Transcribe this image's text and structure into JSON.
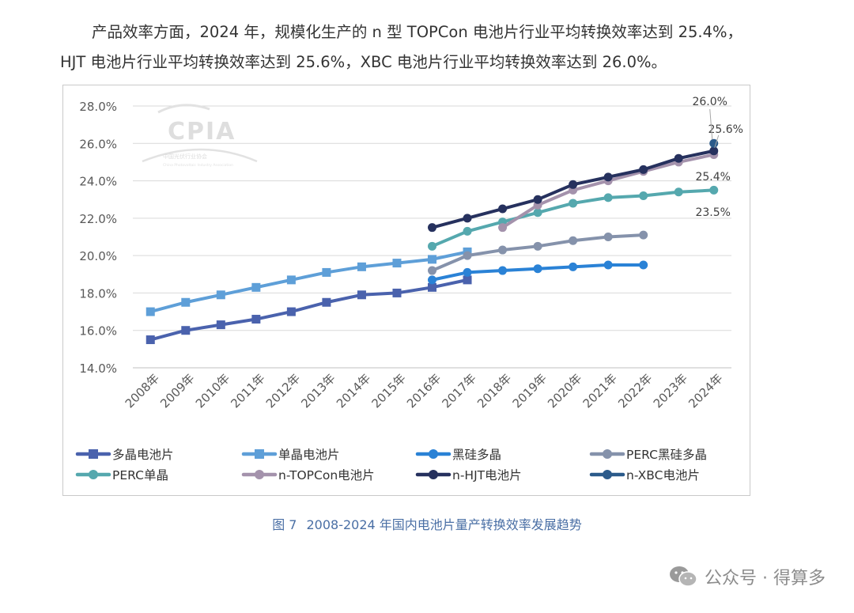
{
  "text": {
    "line1": "产品效率方面，2024 年，规模化生产的 n 型 TOPCon 电池片行业平均转换效率达到 25.4%，",
    "line2": "HJT 电池片行业平均转换效率达到 25.6%，XBC 电池片行业平均转换效率达到 26.0%。",
    "caption_num": "图 7",
    "caption_text": "2008-2024 年国内电池片量产转换效率发展趋势",
    "watermark": "公众号 · 得算多",
    "logo_text": "CPIA",
    "logo_sub1": "中国光伏行业协会",
    "logo_sub2": "China Photovoltaic Industry Association"
  },
  "chart_data": {
    "type": "line",
    "title": "",
    "xlabel": "",
    "ylabel": "",
    "ylim": [
      14.0,
      28.0
    ],
    "yticks": [
      "14.0%",
      "16.0%",
      "18.0%",
      "20.0%",
      "22.0%",
      "24.0%",
      "26.0%",
      "28.0%"
    ],
    "grid": true,
    "legend_position": "bottom",
    "categories": [
      "2008年",
      "2009年",
      "2010年",
      "2011年",
      "2012年",
      "2013年",
      "2014年",
      "2015年",
      "2016年",
      "2017年",
      "2018年",
      "2019年",
      "2020年",
      "2021年",
      "2022年",
      "2023年",
      "2024年"
    ],
    "series": [
      {
        "name": "多晶电池片",
        "color": "#4a62ad",
        "marker": "square",
        "values": [
          15.5,
          16.0,
          16.3,
          16.6,
          17.0,
          17.5,
          17.9,
          18.0,
          18.3,
          18.7,
          null,
          null,
          null,
          null,
          null,
          null,
          null
        ]
      },
      {
        "name": "单晶电池片",
        "color": "#5e9fd8",
        "marker": "square",
        "values": [
          17.0,
          17.5,
          17.9,
          18.3,
          18.7,
          19.1,
          19.4,
          19.6,
          19.8,
          20.2,
          null,
          null,
          null,
          null,
          null,
          null,
          null
        ]
      },
      {
        "name": "黑硅多晶",
        "color": "#2a82d6",
        "marker": "circle",
        "values": [
          null,
          null,
          null,
          null,
          null,
          null,
          null,
          null,
          18.7,
          19.1,
          19.2,
          19.3,
          19.4,
          19.5,
          19.5,
          null,
          null
        ]
      },
      {
        "name": "PERC黑硅多晶",
        "color": "#8592ab",
        "marker": "circle",
        "values": [
          null,
          null,
          null,
          null,
          null,
          null,
          null,
          null,
          19.2,
          20.0,
          20.3,
          20.5,
          20.8,
          21.0,
          21.1,
          null,
          null
        ]
      },
      {
        "name": "PERC单晶",
        "color": "#55a8ae",
        "marker": "circle",
        "values": [
          null,
          null,
          null,
          null,
          null,
          null,
          null,
          null,
          20.5,
          21.3,
          21.8,
          22.3,
          22.8,
          23.1,
          23.2,
          23.4,
          23.5
        ]
      },
      {
        "name": "n-TOPCon电池片",
        "color": "#a492ac",
        "marker": "circle",
        "values": [
          null,
          null,
          null,
          null,
          null,
          null,
          null,
          null,
          null,
          null,
          21.5,
          22.7,
          23.5,
          24.0,
          24.5,
          25.0,
          25.4
        ]
      },
      {
        "name": "n-HJT电池片",
        "color": "#26315e",
        "marker": "circle",
        "values": [
          null,
          null,
          null,
          null,
          null,
          null,
          null,
          null,
          21.5,
          22.0,
          22.5,
          23.0,
          23.8,
          24.2,
          24.6,
          25.2,
          25.6
        ]
      },
      {
        "name": "n-XBC电池片",
        "color": "#2b5a8a",
        "marker": "circle",
        "values": [
          null,
          null,
          null,
          null,
          null,
          null,
          null,
          null,
          null,
          null,
          null,
          null,
          null,
          null,
          null,
          null,
          26.0
        ]
      }
    ],
    "annotations": [
      "26.0%",
      "25.6%",
      "25.4%",
      "23.5%"
    ]
  }
}
